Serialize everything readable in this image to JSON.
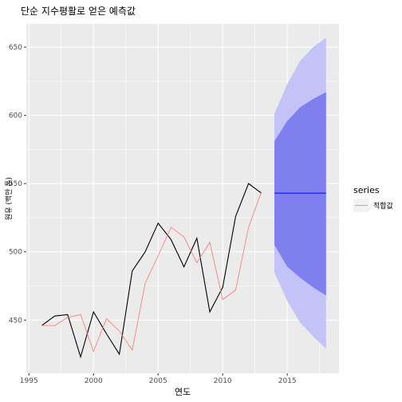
{
  "chart_data": {
    "type": "line",
    "title": "단순 지수평활로 얻은 예측값",
    "xlabel": "연도",
    "ylabel": "원유 (백만 톤)",
    "xlim": [
      1994.8,
      2019.0
    ],
    "ylim": [
      411,
      667
    ],
    "x_ticks": [
      1995,
      2000,
      2005,
      2010,
      2015
    ],
    "x_tick_labels": [
      "1995",
      "2000",
      "2005",
      "2010",
      "2015"
    ],
    "y_ticks": [
      450,
      500,
      550,
      600,
      650
    ],
    "y_tick_labels": [
      "450",
      "500",
      "550",
      "600",
      "650"
    ],
    "grid": true,
    "legend": {
      "title": "series",
      "position": "right"
    },
    "series": [
      {
        "color": "#000000",
        "x": [
          1996,
          1997,
          1998,
          1999,
          2000,
          2001,
          2002,
          2003,
          2004,
          2005,
          2006,
          2007,
          2008,
          2009,
          2010,
          2011,
          2012,
          2013
        ],
        "y": [
          446,
          453,
          454,
          423,
          456,
          440,
          425,
          486,
          500,
          521,
          509,
          489,
          510,
          456,
          474,
          526,
          550,
          543
        ]
      },
      {
        "name": "적합값",
        "color": "#f8766d",
        "x": [
          1996,
          1997,
          1998,
          1999,
          2000,
          2001,
          2002,
          2003,
          2004,
          2005,
          2006,
          2007,
          2008,
          2009,
          2010,
          2011,
          2012,
          2013
        ],
        "y": [
          446,
          446,
          452,
          454,
          427,
          451,
          442,
          428,
          477,
          497,
          518,
          511,
          492,
          507,
          465,
          472,
          518,
          544
        ]
      }
    ],
    "forecast": {
      "x": [
        2014,
        2015,
        2016,
        2017,
        2018
      ],
      "mean": [
        543,
        543,
        543,
        543,
        543
      ],
      "lo80": [
        505,
        489,
        481,
        474,
        468
      ],
      "hi80": [
        581,
        596,
        606,
        612,
        617
      ],
      "lo95": [
        485,
        464,
        448,
        438,
        429
      ],
      "hi95": [
        601,
        623,
        640,
        650,
        657
      ],
      "line_color": "#0000ff",
      "band80_color": "#7f7ff0",
      "band95_color": "#c3c3f7"
    }
  }
}
